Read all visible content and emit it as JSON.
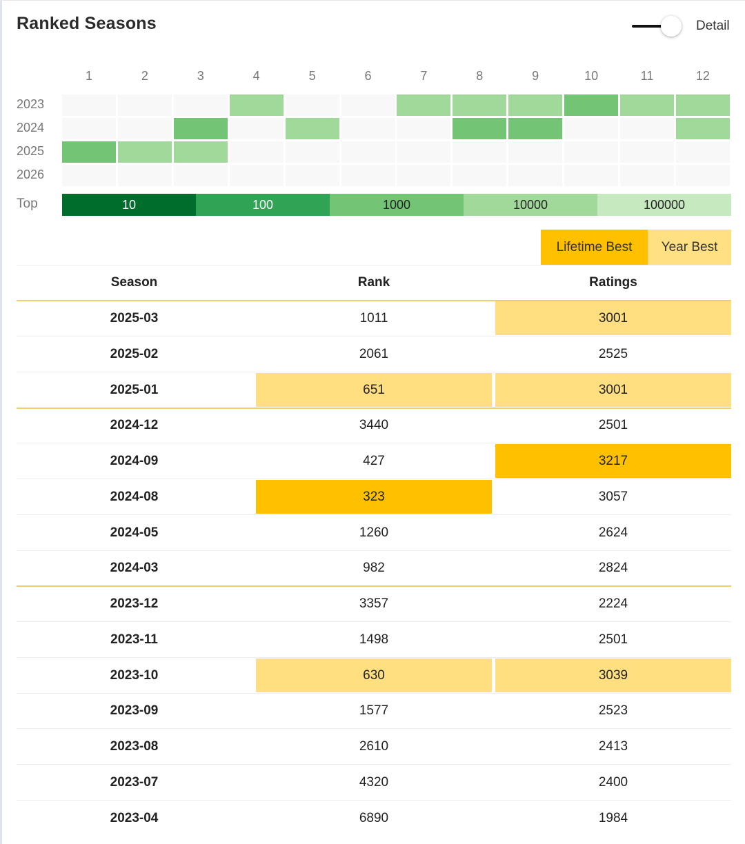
{
  "header": {
    "title": "Ranked Seasons",
    "toggle_label": "Detail"
  },
  "heatmap": {
    "months": [
      "1",
      "2",
      "3",
      "4",
      "5",
      "6",
      "7",
      "8",
      "9",
      "10",
      "11",
      "12"
    ],
    "years": [
      "2023",
      "2024",
      "2025",
      "2026"
    ],
    "levels": [
      [
        0,
        0,
        0,
        4,
        0,
        0,
        4,
        4,
        4,
        3,
        4,
        4
      ],
      [
        0,
        0,
        3,
        0,
        4,
        0,
        0,
        3,
        3,
        0,
        0,
        4
      ],
      [
        3,
        4,
        4,
        0,
        0,
        0,
        0,
        0,
        0,
        0,
        0,
        0
      ],
      [
        0,
        0,
        0,
        0,
        0,
        0,
        0,
        0,
        0,
        0,
        0,
        0
      ]
    ],
    "level_colors": [
      "#f8f8f8",
      "#006d2c",
      "#31a354",
      "#74c476",
      "#a1d99b",
      "#c7e9c0"
    ]
  },
  "legend": {
    "label": "Top",
    "items": [
      {
        "label": "10",
        "color": "#006d2c"
      },
      {
        "label": "100",
        "color": "#31a354"
      },
      {
        "label": "1000",
        "color": "#74c476"
      },
      {
        "label": "10000",
        "color": "#a1d99b"
      },
      {
        "label": "100000",
        "color": "#c7e9c0"
      }
    ]
  },
  "filters": {
    "lifetime_best": "Lifetime Best",
    "year_best": "Year Best"
  },
  "highlight_colors": {
    "lifetime": "#ffc000",
    "year": "#ffdf80"
  },
  "table": {
    "headers": [
      "Season",
      "Rank",
      "Ratings"
    ],
    "rows": [
      {
        "season": "2025-03",
        "rank": "1011",
        "rating": "3001",
        "rank_hl": "",
        "rating_hl": "year"
      },
      {
        "season": "2025-02",
        "rank": "2061",
        "rating": "2525",
        "rank_hl": "",
        "rating_hl": ""
      },
      {
        "season": "2025-01",
        "rank": "651",
        "rating": "3001",
        "rank_hl": "year",
        "rating_hl": "year"
      },
      {
        "season": "2024-12",
        "rank": "3440",
        "rating": "2501",
        "rank_hl": "",
        "rating_hl": ""
      },
      {
        "season": "2024-09",
        "rank": "427",
        "rating": "3217",
        "rank_hl": "",
        "rating_hl": "lifetime"
      },
      {
        "season": "2024-08",
        "rank": "323",
        "rating": "3057",
        "rank_hl": "lifetime",
        "rating_hl": ""
      },
      {
        "season": "2024-05",
        "rank": "1260",
        "rating": "2624",
        "rank_hl": "",
        "rating_hl": ""
      },
      {
        "season": "2024-03",
        "rank": "982",
        "rating": "2824",
        "rank_hl": "",
        "rating_hl": ""
      },
      {
        "season": "2023-12",
        "rank": "3357",
        "rating": "2224",
        "rank_hl": "",
        "rating_hl": ""
      },
      {
        "season": "2023-11",
        "rank": "1498",
        "rating": "2501",
        "rank_hl": "",
        "rating_hl": ""
      },
      {
        "season": "2023-10",
        "rank": "630",
        "rating": "3039",
        "rank_hl": "year",
        "rating_hl": "year"
      },
      {
        "season": "2023-09",
        "rank": "1577",
        "rating": "2523",
        "rank_hl": "",
        "rating_hl": ""
      },
      {
        "season": "2023-08",
        "rank": "2610",
        "rating": "2413",
        "rank_hl": "",
        "rating_hl": ""
      },
      {
        "season": "2023-07",
        "rank": "4320",
        "rating": "2400",
        "rank_hl": "",
        "rating_hl": ""
      },
      {
        "season": "2023-04",
        "rank": "6890",
        "rating": "1984",
        "rank_hl": "",
        "rating_hl": ""
      }
    ]
  }
}
